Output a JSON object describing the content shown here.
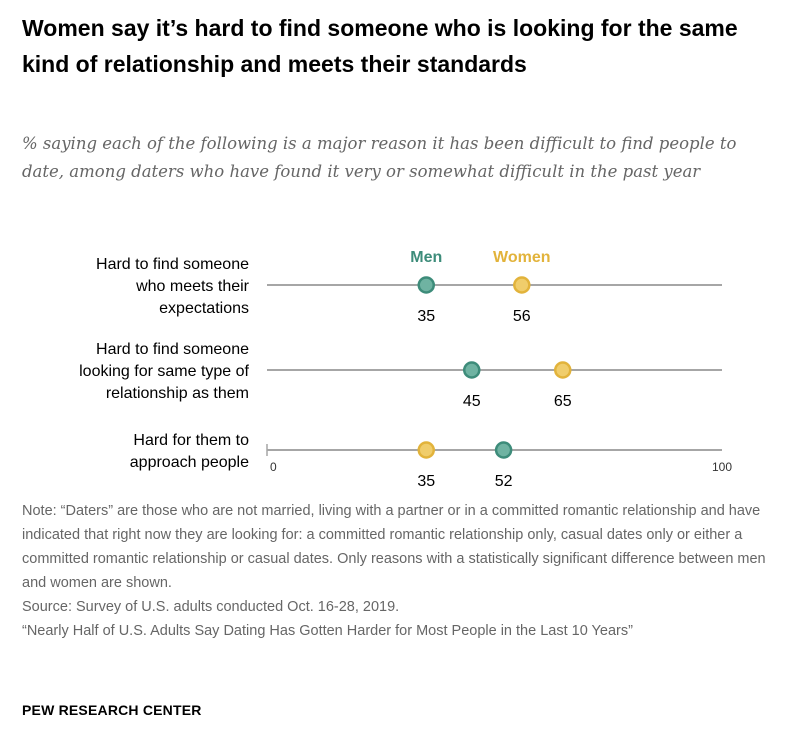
{
  "title": "Women say it’s hard to find someone who is looking for the same kind of relationship and meets their standards",
  "subtitle": "% saying each of the following is a major reason it has been difficult to find people to date, among daters who have found it very or somewhat difficult in the past year",
  "notes": {
    "note": "Note: “Daters” are those who are not married, living with a partner or in a committed romantic relationship and have indicated that right now they are looking for: a committed romantic relationship only, casual dates only or either a committed romantic relationship or casual dates. Only reasons with a statistically significant difference between men and women are shown.",
    "source": "Source: Survey of U.S. adults conducted Oct. 16-28, 2019.",
    "report": "“Nearly Half of U.S. Adults Say Dating Has Gotten Harder for Most People in the Last 10 Years”"
  },
  "brand": "PEW RESEARCH CENTER",
  "colors": {
    "men": "#3d8c7a",
    "women": "#e2b33b",
    "line": "#a6a6a6"
  },
  "chart_data": {
    "type": "dot",
    "categories": [
      [
        "Hard to find someone",
        "who meets their",
        "expectations"
      ],
      [
        "Hard to find someone",
        "looking for same type of",
        "relationship as them"
      ],
      [
        "Hard for them to",
        "approach people"
      ]
    ],
    "series": [
      {
        "name": "Men",
        "values": [
          35,
          45,
          52
        ]
      },
      {
        "name": "Women",
        "values": [
          56,
          65,
          35
        ]
      }
    ],
    "xlim": [
      0,
      100
    ],
    "x_ticks": [
      0,
      100
    ],
    "legend_placement": "top, aligned above first row's points"
  }
}
